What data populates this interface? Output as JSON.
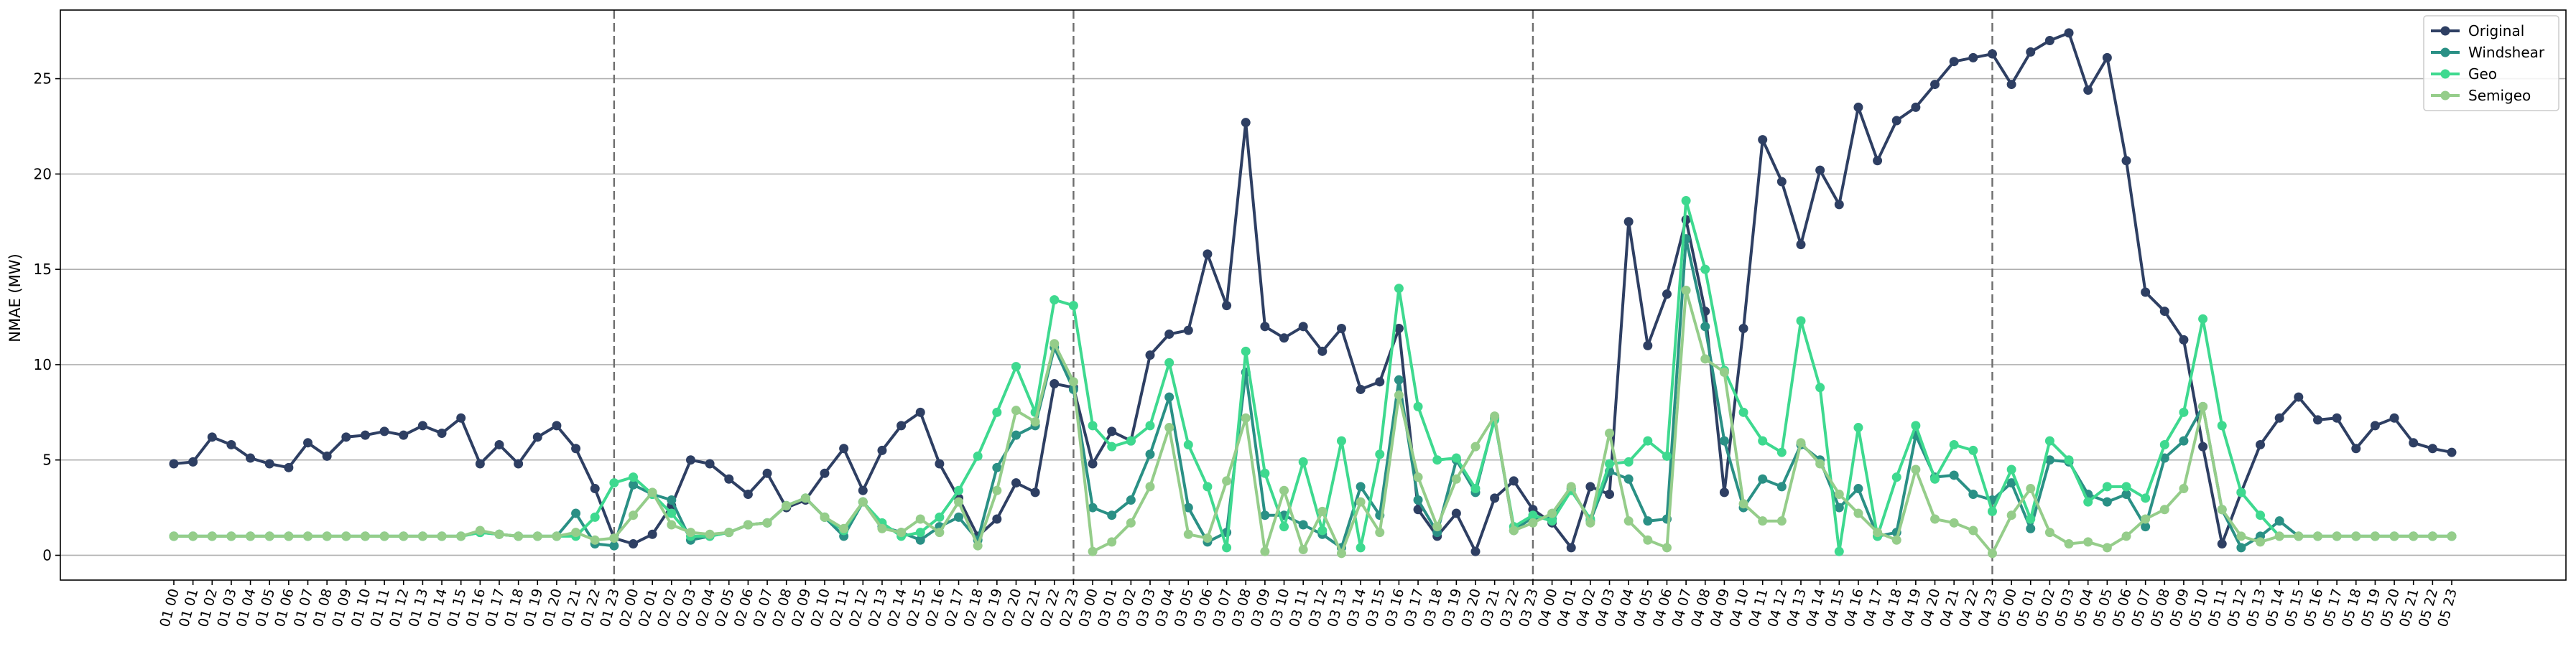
{
  "chart_data": {
    "type": "line",
    "title": "",
    "xlabel": "",
    "ylabel": "NMAE (MW)",
    "ylim": [
      -1.3,
      28.6
    ],
    "yticks": [
      0,
      5,
      10,
      15,
      20,
      25
    ],
    "grid": "horizontal",
    "legend_position": "top-right",
    "day_separators_after": [
      "01 23",
      "02 23",
      "03 23",
      "04 23"
    ],
    "categories": [
      "01 00",
      "01 01",
      "01 02",
      "01 03",
      "01 04",
      "01 05",
      "01 06",
      "01 07",
      "01 08",
      "01 09",
      "01 10",
      "01 11",
      "01 12",
      "01 13",
      "01 14",
      "01 15",
      "01 16",
      "01 17",
      "01 18",
      "01 19",
      "01 20",
      "01 21",
      "01 22",
      "01 23",
      "02 00",
      "02 01",
      "02 02",
      "02 03",
      "02 04",
      "02 05",
      "02 06",
      "02 07",
      "02 08",
      "02 09",
      "02 10",
      "02 11",
      "02 12",
      "02 13",
      "02 14",
      "02 15",
      "02 16",
      "02 17",
      "02 18",
      "02 19",
      "02 20",
      "02 21",
      "02 22",
      "02 23",
      "03 00",
      "03 01",
      "03 02",
      "03 03",
      "03 04",
      "03 05",
      "03 06",
      "03 07",
      "03 08",
      "03 09",
      "03 10",
      "03 11",
      "03 12",
      "03 13",
      "03 14",
      "03 15",
      "03 16",
      "03 17",
      "03 18",
      "03 19",
      "03 20",
      "03 21",
      "03 22",
      "03 23",
      "04 00",
      "04 01",
      "04 02",
      "04 03",
      "04 04",
      "04 05",
      "04 06",
      "04 07",
      "04 08",
      "04 09",
      "04 10",
      "04 11",
      "04 12",
      "04 13",
      "04 14",
      "04 15",
      "04 16",
      "04 17",
      "04 18",
      "04 19",
      "04 20",
      "04 21",
      "04 22",
      "04 23",
      "05 00",
      "05 01",
      "05 02",
      "05 03",
      "05 04",
      "05 05",
      "05 06",
      "05 07",
      "05 08",
      "05 09",
      "05 10",
      "05 11",
      "05 12",
      "05 13",
      "05 14",
      "05 15",
      "05 16",
      "05 17",
      "05 18",
      "05 19",
      "05 20",
      "05 21",
      "05 22",
      "05 23"
    ],
    "series": [
      {
        "name": "Original",
        "color": "#2e3f63",
        "values": [
          4.8,
          4.9,
          6.2,
          5.8,
          5.1,
          4.8,
          4.6,
          5.9,
          5.2,
          6.2,
          6.3,
          6.5,
          6.3,
          6.8,
          6.4,
          7.2,
          4.8,
          5.8,
          4.8,
          6.2,
          6.8,
          5.6,
          3.5,
          0.9,
          0.6,
          1.1,
          2.6,
          5.0,
          4.8,
          4.0,
          3.2,
          4.3,
          2.5,
          2.9,
          4.3,
          5.6,
          3.4,
          5.5,
          6.8,
          7.5,
          4.8,
          3.0,
          1.0,
          1.9,
          3.8,
          3.3,
          9.0,
          8.8,
          4.8,
          6.5,
          6.0,
          10.5,
          11.6,
          11.8,
          15.8,
          13.1,
          22.7,
          12.0,
          11.4,
          12.0,
          10.7,
          11.9,
          8.7,
          9.1,
          11.9,
          2.4,
          1.0,
          2.2,
          0.2,
          3.0,
          3.9,
          2.4,
          1.7,
          0.4,
          3.6,
          3.2,
          17.5,
          11.0,
          13.7,
          17.6,
          12.8,
          3.3,
          11.9,
          21.8,
          19.6,
          16.3,
          20.2,
          18.4,
          23.5,
          20.7,
          22.8,
          23.5,
          24.7,
          25.9,
          26.1,
          26.3,
          24.7,
          26.4,
          27.0,
          27.4,
          24.4,
          26.1,
          20.7,
          13.8,
          12.8,
          11.3,
          5.7,
          0.6,
          3.3,
          5.8,
          7.2,
          8.3,
          7.1,
          7.2,
          5.6,
          6.8,
          7.2,
          5.9,
          5.6,
          5.4
        ]
      },
      {
        "name": "Windshear",
        "color": "#2a9085",
        "values": [
          1.0,
          1.0,
          1.0,
          1.0,
          1.0,
          1.0,
          1.0,
          1.0,
          1.0,
          1.0,
          1.0,
          1.0,
          1.0,
          1.0,
          1.0,
          1.0,
          1.2,
          1.1,
          1.0,
          1.0,
          1.0,
          2.2,
          0.6,
          0.5,
          3.7,
          3.2,
          2.9,
          0.8,
          1.0,
          1.2,
          1.6,
          1.7,
          2.6,
          3.0,
          2.0,
          1.0,
          2.8,
          1.5,
          1.2,
          0.8,
          1.5,
          2.0,
          0.8,
          4.6,
          6.3,
          6.8,
          10.9,
          8.7,
          2.5,
          2.1,
          2.9,
          5.3,
          8.3,
          2.5,
          0.7,
          1.2,
          9.6,
          2.1,
          2.1,
          1.6,
          1.1,
          0.4,
          3.6,
          2.1,
          9.2,
          2.9,
          1.2,
          5.0,
          3.3,
          7.2,
          1.3,
          2.0,
          1.9,
          3.5,
          1.8,
          4.4,
          4.0,
          1.8,
          1.9,
          16.6,
          12.0,
          6.0,
          2.5,
          4.0,
          3.6,
          5.8,
          5.0,
          2.5,
          3.5,
          1.0,
          1.2,
          6.3,
          4.1,
          4.2,
          3.2,
          2.9,
          3.8,
          1.4,
          5.0,
          4.9,
          3.2,
          2.8,
          3.2,
          1.5,
          5.1,
          6.0,
          7.8,
          2.4,
          0.4,
          1.0,
          1.8,
          1.0,
          1.0,
          1.0,
          1.0,
          1.0,
          1.0,
          1.0,
          1.0,
          1.0
        ]
      },
      {
        "name": "Geo",
        "color": "#3ed98f",
        "values": [
          1.0,
          1.0,
          1.0,
          1.0,
          1.0,
          1.0,
          1.0,
          1.0,
          1.0,
          1.0,
          1.0,
          1.0,
          1.0,
          1.0,
          1.0,
          1.0,
          1.2,
          1.1,
          1.0,
          1.0,
          1.0,
          1.0,
          2.0,
          3.8,
          4.1,
          3.2,
          2.2,
          1.0,
          1.0,
          1.2,
          1.6,
          1.7,
          2.6,
          3.0,
          2.0,
          1.3,
          2.8,
          1.7,
          1.0,
          1.2,
          2.0,
          3.4,
          5.2,
          7.5,
          9.9,
          7.5,
          13.4,
          13.1,
          6.8,
          5.7,
          6.0,
          6.8,
          10.1,
          5.8,
          3.6,
          0.4,
          10.7,
          4.3,
          1.5,
          4.9,
          1.3,
          6.0,
          0.4,
          5.3,
          14.0,
          7.8,
          5.0,
          5.1,
          3.5,
          7.1,
          1.5,
          2.1,
          1.8,
          3.4,
          1.9,
          4.8,
          4.9,
          6.0,
          5.2,
          18.6,
          15.0,
          9.7,
          7.5,
          6.0,
          5.4,
          12.3,
          8.8,
          0.2,
          6.7,
          1.0,
          4.1,
          6.8,
          4.0,
          5.8,
          5.5,
          2.3,
          4.5,
          1.9,
          6.0,
          5.0,
          2.8,
          3.6,
          3.6,
          3.0,
          5.8,
          7.5,
          12.4,
          6.8,
          3.3,
          2.1,
          1.0,
          1.0,
          1.0,
          1.0,
          1.0,
          1.0,
          1.0,
          1.0,
          1.0,
          1.0
        ]
      },
      {
        "name": "Semigeo",
        "color": "#95cd8a",
        "values": [
          1.0,
          1.0,
          1.0,
          1.0,
          1.0,
          1.0,
          1.0,
          1.0,
          1.0,
          1.0,
          1.0,
          1.0,
          1.0,
          1.0,
          1.0,
          1.0,
          1.3,
          1.1,
          1.0,
          1.0,
          1.0,
          1.2,
          0.8,
          0.9,
          2.1,
          3.3,
          1.6,
          1.2,
          1.1,
          1.2,
          1.6,
          1.7,
          2.6,
          3.0,
          2.0,
          1.4,
          2.8,
          1.4,
          1.2,
          1.9,
          1.2,
          2.8,
          0.5,
          3.4,
          7.6,
          7.0,
          11.1,
          9.1,
          0.2,
          0.7,
          1.7,
          3.6,
          6.7,
          1.1,
          0.9,
          3.9,
          7.2,
          0.2,
          3.4,
          0.3,
          2.3,
          0.1,
          2.8,
          1.2,
          8.4,
          4.1,
          1.5,
          4.0,
          5.7,
          7.3,
          1.3,
          1.7,
          2.2,
          3.6,
          1.7,
          6.4,
          1.8,
          0.8,
          0.4,
          13.9,
          10.3,
          9.6,
          2.7,
          1.8,
          1.8,
          5.9,
          4.8,
          3.2,
          2.2,
          1.2,
          0.8,
          4.5,
          1.9,
          1.7,
          1.3,
          0.1,
          2.1,
          3.5,
          1.2,
          0.6,
          0.7,
          0.4,
          1.0,
          1.9,
          2.4,
          3.5,
          7.8,
          2.4,
          1.0,
          0.7,
          1.0,
          1.0,
          1.0,
          1.0,
          1.0,
          1.0,
          1.0,
          1.0,
          1.0,
          1.0
        ]
      }
    ]
  }
}
